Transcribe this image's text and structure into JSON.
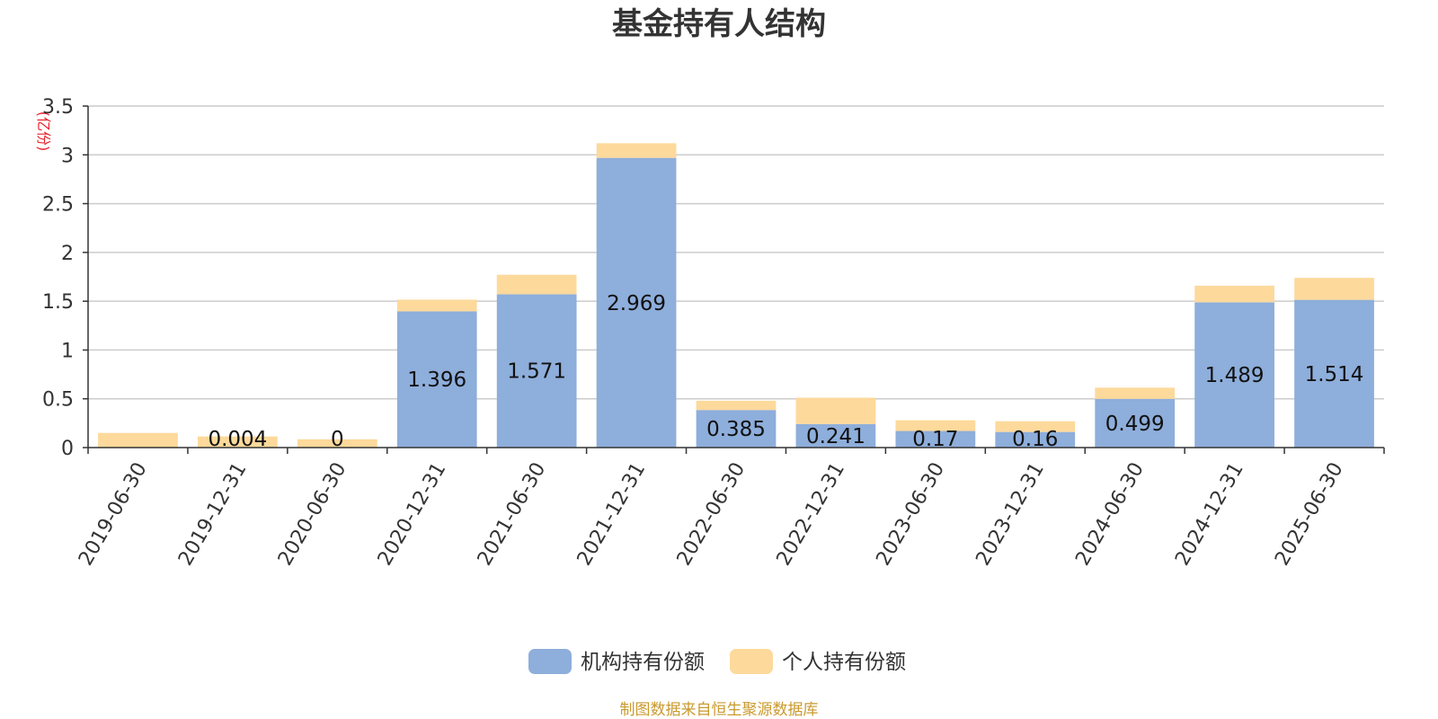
{
  "chart_data": {
    "type": "bar",
    "stacked": true,
    "title": "基金持有人结构",
    "y_unit_label": "(亿份)",
    "ylim": [
      0,
      3.5
    ],
    "y_ticks": [
      "0",
      "0.5",
      "1",
      "1.5",
      "2",
      "2.5",
      "3",
      "3.5"
    ],
    "grid": true,
    "categories": [
      "2019-06-30",
      "2019-12-31",
      "2020-06-30",
      "2020-12-31",
      "2021-06-30",
      "2021-12-31",
      "2022-06-30",
      "2022-12-31",
      "2023-06-30",
      "2023-12-31",
      "2024-06-30",
      "2024-12-31",
      "2025-06-30"
    ],
    "series": [
      {
        "name": "机构持有份额",
        "color": "#8eaedb",
        "values": [
          0,
          0.004,
          0,
          1.396,
          1.571,
          2.969,
          0.385,
          0.241,
          0.17,
          0.16,
          0.499,
          1.489,
          1.514
        ],
        "labels": [
          "",
          "0.004",
          "0",
          "1.396",
          "1.571",
          "2.969",
          "0.385",
          "0.241",
          "0.17",
          "0.16",
          "0.499",
          "1.489",
          "1.514"
        ]
      },
      {
        "name": "个人持有份额",
        "color": "#fdd99b",
        "values": [
          0.15,
          0.11,
          0.085,
          0.12,
          0.2,
          0.15,
          0.095,
          0.27,
          0.11,
          0.11,
          0.115,
          0.17,
          0.225
        ]
      }
    ],
    "legend_position": "bottom-center",
    "source": "制图数据来自恒生聚源数据库",
    "colors": {
      "title": "#333333",
      "unit": "#e8202a",
      "source": "#c99a2e",
      "grid": "#cccccc",
      "axis": "#333333"
    }
  }
}
